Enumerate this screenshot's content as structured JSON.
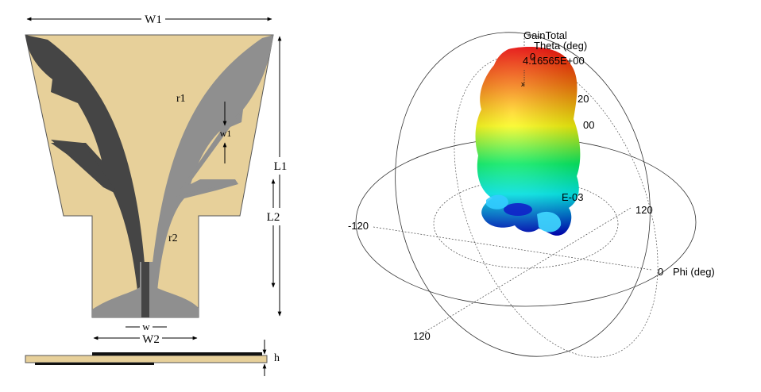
{
  "antenna_diagram": {
    "labels": {
      "W1": "W1",
      "W2": "W2",
      "w": "w",
      "w1": "w1",
      "L1": "L1",
      "L2": "L2",
      "r1": "r1",
      "r2": "r2",
      "h": "h"
    },
    "colors": {
      "substrate": "#E7D09A",
      "radiator_dark": "#454545",
      "radiator_light": "#8F8F8F",
      "outline": "#555555"
    }
  },
  "radiation_pattern": {
    "title": "GainTotal",
    "theta_axis_label": "Theta (deg)",
    "theta_tick_0": "0",
    "max_gain_label": "4.16565E+00",
    "ring_label_20": "20",
    "ring_label_00": "00",
    "min_gain_label": "E-03",
    "phi_axis_label": "Phi (deg)",
    "phi_tick_0": "0",
    "phi_tick_left": "-120",
    "phi_tick_right": "120",
    "phi_tick_bottom": "120",
    "colormap": [
      "#0000CC",
      "#00FFFF",
      "#00FF66",
      "#FFFF00",
      "#FF8000",
      "#FF0000"
    ]
  }
}
